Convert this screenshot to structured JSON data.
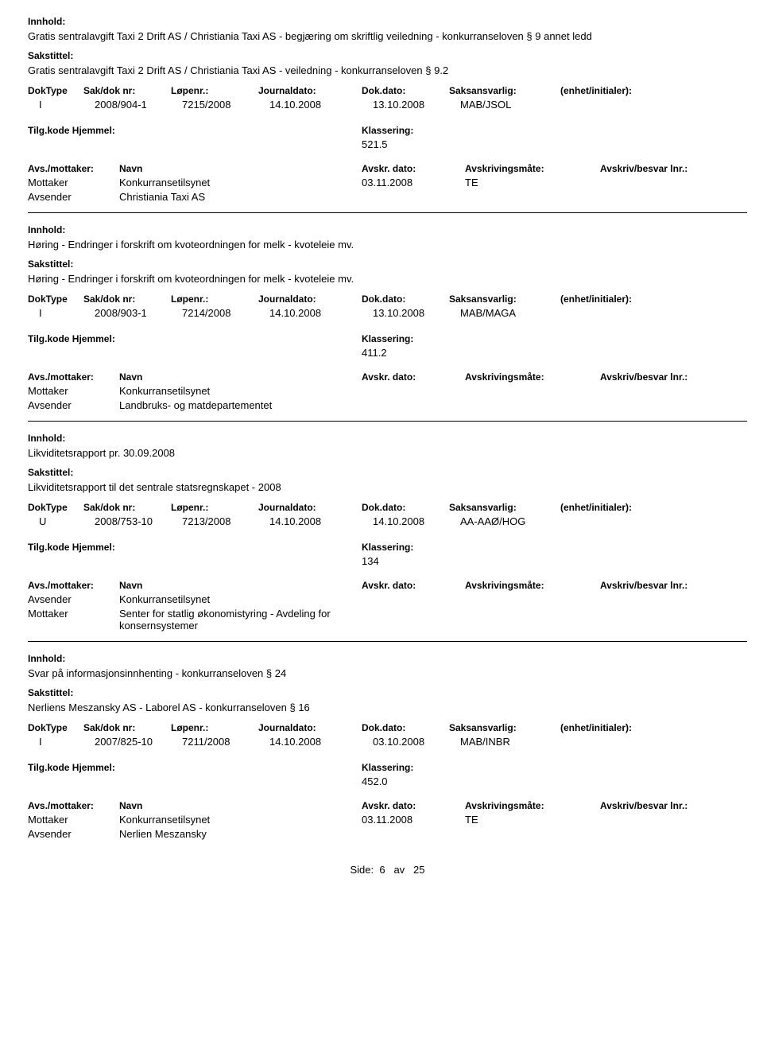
{
  "labels": {
    "innhold": "Innhold:",
    "sakstittel": "Sakstittel:",
    "doktype": "DokType",
    "sakdok": "Sak/dok nr:",
    "lopenr": "Løpenr.:",
    "journaldato": "Journaldato:",
    "dokdato": "Dok.dato:",
    "saksansvarlig": "Saksansvarlig:",
    "enhet": "(enhet/initialer):",
    "tilgkode": "Tilg.kode",
    "hjemmel": "Hjemmel:",
    "klassering": "Klassering:",
    "avsmottaker": "Avs./mottaker:",
    "navn": "Navn",
    "avskrdato": "Avskr. dato:",
    "avskrivingsmate": "Avskrivingsmåte:",
    "avskrivbesvar": "Avskriv/besvar lnr.:",
    "mottaker": "Mottaker",
    "avsender": "Avsender"
  },
  "entries": [
    {
      "innhold": "Gratis sentralavgift Taxi 2 Drift AS / Christiania Taxi AS - begjæring om skriftlig veiledning - konkurranseloven § 9 annet ledd",
      "sakstittel": "Gratis sentralavgift Taxi 2 Drift AS / Christiania Taxi AS - veiledning - konkurranseloven § 9.2",
      "doktype": "I",
      "sakdok": "2008/904-1",
      "lopenr": "7215/2008",
      "journaldato": "14.10.2008",
      "dokdato": "13.10.2008",
      "saksansvarlig": "MAB/JSOL",
      "klassering": "521.5",
      "parties": [
        {
          "role": "Mottaker",
          "name": "Konkurransetilsynet",
          "avskrdato": "03.11.2008",
          "avskrmate": "TE"
        },
        {
          "role": "Avsender",
          "name": "Christiania Taxi AS",
          "avskrdato": "",
          "avskrmate": ""
        }
      ]
    },
    {
      "innhold": "Høring - Endringer i forskrift om kvoteordningen for melk - kvoteleie mv.",
      "sakstittel": "Høring - Endringer i forskrift om kvoteordningen for melk - kvoteleie mv.",
      "doktype": "I",
      "sakdok": "2008/903-1",
      "lopenr": "7214/2008",
      "journaldato": "14.10.2008",
      "dokdato": "13.10.2008",
      "saksansvarlig": "MAB/MAGA",
      "klassering": "411.2",
      "parties": [
        {
          "role": "Mottaker",
          "name": "Konkurransetilsynet",
          "avskrdato": "",
          "avskrmate": ""
        },
        {
          "role": "Avsender",
          "name": "Landbruks- og matdepartementet",
          "avskrdato": "",
          "avskrmate": ""
        }
      ]
    },
    {
      "innhold": "Likviditetsrapport pr. 30.09.2008",
      "sakstittel": "Likviditetsrapport til det sentrale statsregnskapet - 2008",
      "doktype": "U",
      "sakdok": "2008/753-10",
      "lopenr": "7213/2008",
      "journaldato": "14.10.2008",
      "dokdato": "14.10.2008",
      "saksansvarlig": "AA-AAØ/HOG",
      "klassering": "134",
      "parties": [
        {
          "role": "Avsender",
          "name": "Konkurransetilsynet",
          "avskrdato": "",
          "avskrmate": ""
        },
        {
          "role": "Mottaker",
          "name": "Senter for statlig økonomistyring - Avdeling for konsernsystemer",
          "avskrdato": "",
          "avskrmate": ""
        }
      ]
    },
    {
      "innhold": "Svar på informasjonsinnhenting - konkurranseloven § 24",
      "sakstittel": "Nerliens Meszansky AS - Laborel AS - konkurranseloven § 16",
      "doktype": "I",
      "sakdok": "2007/825-10",
      "lopenr": "7211/2008",
      "journaldato": "14.10.2008",
      "dokdato": "03.10.2008",
      "saksansvarlig": "MAB/INBR",
      "klassering": "452.0",
      "parties": [
        {
          "role": "Mottaker",
          "name": "Konkurransetilsynet",
          "avskrdato": "03.11.2008",
          "avskrmate": "TE"
        },
        {
          "role": "Avsender",
          "name": "Nerlien Meszansky",
          "avskrdato": "",
          "avskrmate": ""
        }
      ]
    }
  ],
  "footer": {
    "prefix": "Side:",
    "page": "6",
    "sep": "av",
    "total": "25"
  }
}
